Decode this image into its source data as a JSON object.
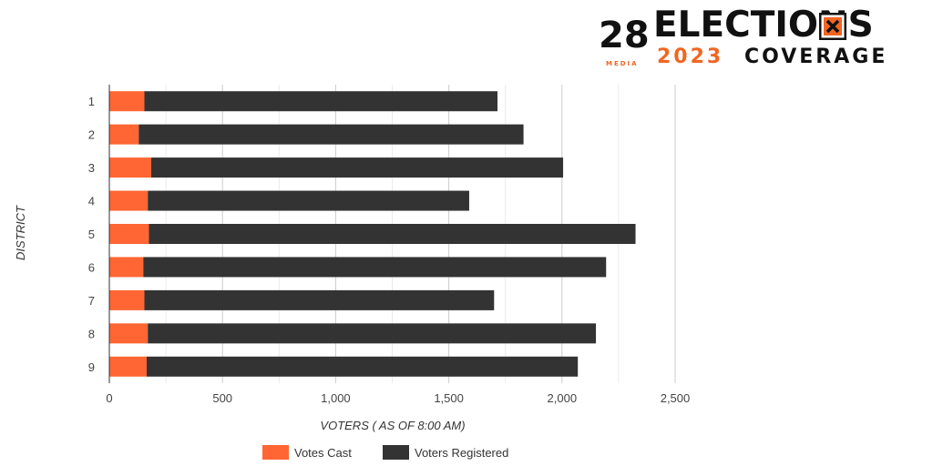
{
  "branding": {
    "title": "ELECTIONS",
    "year": "2023",
    "subtitle": "COVERAGE",
    "station_number": "28",
    "station_label": "MEDIA",
    "accent_color": "#f26522",
    "dark_color": "#111111",
    "icon": "ballot-x-icon"
  },
  "chart_data": {
    "type": "bar",
    "orientation": "horizontal",
    "stacked": true,
    "categories": [
      "1",
      "2",
      "3",
      "4",
      "5",
      "6",
      "7",
      "8",
      "9"
    ],
    "series": [
      {
        "name": "Votes Cast",
        "color": "#ff6633",
        "values": [
          155,
          130,
          185,
          170,
          175,
          150,
          155,
          170,
          165
        ]
      },
      {
        "name": "Voters Registered",
        "color": "#333333",
        "values": [
          1560,
          1700,
          1820,
          1420,
          2150,
          2045,
          1545,
          1980,
          1905
        ]
      }
    ],
    "xlabel": "VOTERS ( AS OF 8:00 AM)",
    "ylabel": "DISTRICT",
    "xlim": [
      0,
      2500
    ],
    "xticks": [
      0,
      500,
      1000,
      1500,
      2000,
      2500
    ],
    "xtick_labels": [
      "0",
      "500",
      "1,000",
      "1,500",
      "2,000",
      "2,500"
    ],
    "grid": true,
    "legend_position": "bottom"
  }
}
